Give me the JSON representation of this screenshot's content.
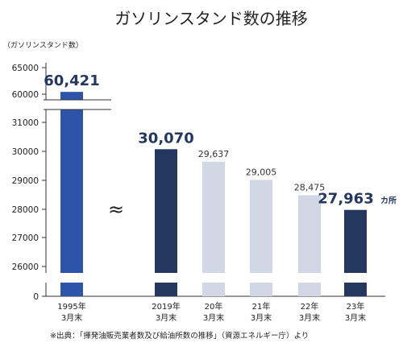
{
  "chart_data": {
    "type": "bar",
    "title": "ガソリンスタンド数の推移",
    "ylabel": "（ガソリンスタンド数）",
    "y_ticks_upper": [
      "65000",
      "60000"
    ],
    "y_ticks_lower": [
      "31000",
      "30000",
      "29000",
      "28000",
      "27000",
      "26000",
      "0"
    ],
    "axis_break": true,
    "gap_marker": "≈",
    "categories": [
      {
        "line1": "1995年",
        "line2": "3月末"
      },
      {
        "line1": "2019年",
        "line2": "3月末"
      },
      {
        "line1": "20年",
        "line2": "3月末"
      },
      {
        "line1": "21年",
        "line2": "3月末"
      },
      {
        "line1": "22年",
        "line2": "3月末"
      },
      {
        "line1": "23年",
        "line2": "3月末"
      }
    ],
    "values": [
      60421,
      30070,
      29637,
      29005,
      28475,
      27963
    ],
    "value_labels": [
      "60,421",
      "30,070",
      "29,637",
      "29,005",
      "28,475",
      "27,963"
    ],
    "last_value_suffix": "カ所",
    "colors": [
      "#2d54a6",
      "#23375f",
      "#d0d8e6",
      "#d0d8e6",
      "#d0d8e6",
      "#23375f"
    ],
    "emphasized": [
      true,
      true,
      false,
      false,
      false,
      true
    ],
    "source": "※出典：「揮発油販売業者数及び給油所数の推移」（資源エネルギー庁）より"
  }
}
